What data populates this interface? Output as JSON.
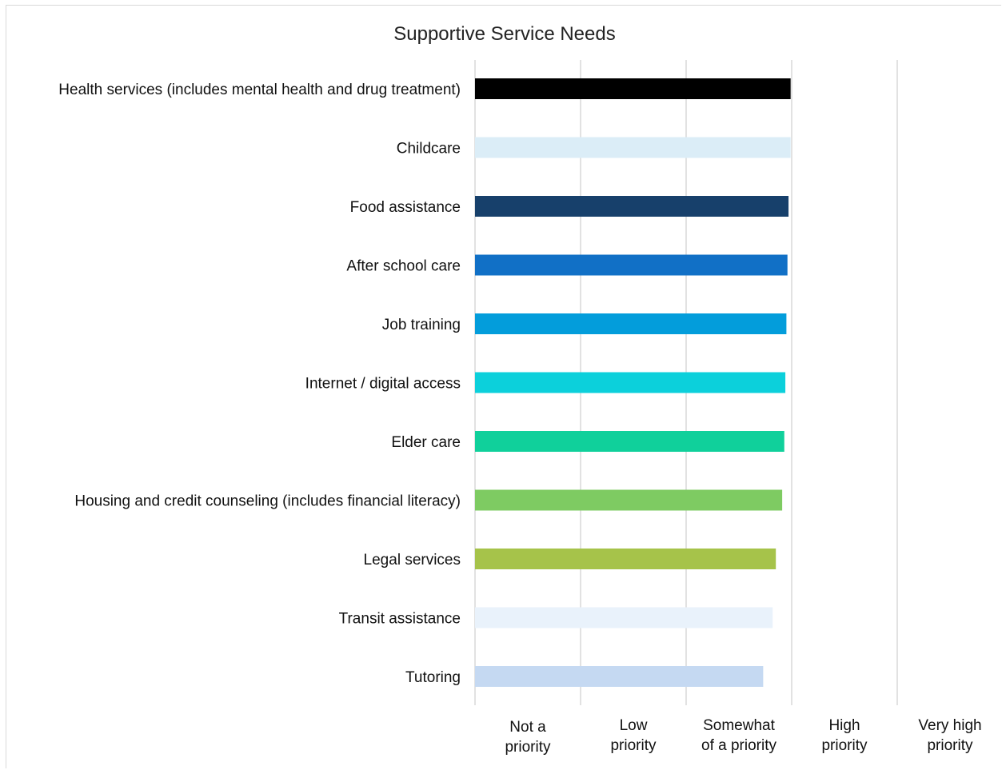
{
  "chart_data": {
    "type": "bar",
    "orientation": "horizontal",
    "title": "Supportive Service Needs",
    "xlabel": "",
    "ylabel": "",
    "xlim": [
      1,
      5
    ],
    "x_ticks": [
      {
        "value": 1.5,
        "lines": [
          "Not a",
          "priority"
        ]
      },
      {
        "value": 2.5,
        "lines": [
          "Low",
          "priority"
        ]
      },
      {
        "value": 3.5,
        "lines": [
          "Somewhat",
          "of a priority"
        ]
      },
      {
        "value": 4.5,
        "lines": [
          "High",
          "priority"
        ]
      },
      {
        "value": 5.5,
        "lines": [
          "Very high",
          "priority"
        ]
      }
    ],
    "grid": true,
    "legend": "none",
    "categories": [
      "Health services (includes mental health and drug treatment)",
      "Childcare",
      "Food assistance",
      "After school care",
      "Job training",
      "Internet / digital access",
      "Elder care",
      "Housing and credit counseling (includes financial literacy)",
      "Legal services",
      "Transit assistance",
      "Tutoring"
    ],
    "values": [
      3.99,
      3.99,
      3.97,
      3.96,
      3.95,
      3.94,
      3.93,
      3.91,
      3.85,
      3.82,
      3.73
    ],
    "colors": [
      "#000000",
      "#dbedf7",
      "#17406b",
      "#1170c6",
      "#039ddb",
      "#0cd0db",
      "#10d09b",
      "#7ecb62",
      "#a6c34a",
      "#e9f2fb",
      "#c5d9f2"
    ]
  }
}
